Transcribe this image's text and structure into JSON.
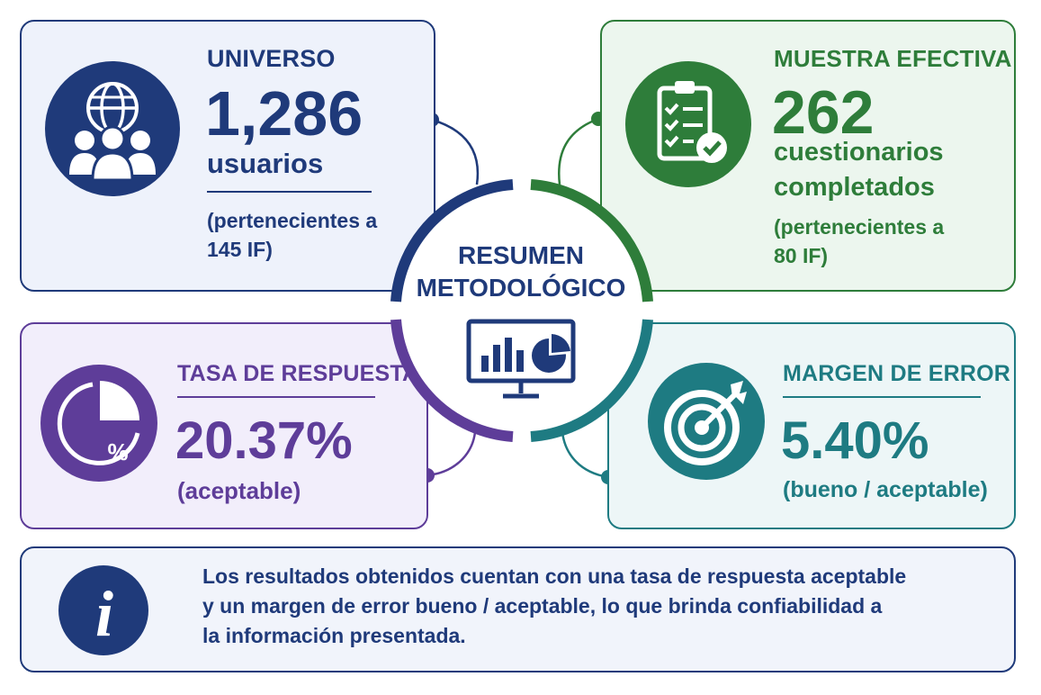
{
  "center": {
    "title_line1": "RESUMEN",
    "title_line2": "METODOLÓGICO",
    "icon": "presentation-chart-icon"
  },
  "universo": {
    "label": "UNIVERSO",
    "value": "1,286",
    "unit": "usuarios",
    "note_line1": "(pertenecientes a",
    "note_line2": "145 IF)",
    "icon": "globe-users-icon",
    "color": "#1f3a7a"
  },
  "muestra": {
    "label": "MUESTRA EFECTIVA",
    "value": "262",
    "unit_line1": "cuestionarios",
    "unit_line2": "completados",
    "note_line1": "(pertenecientes a",
    "note_line2": "80 IF)",
    "icon": "clipboard-check-icon",
    "color": "#2e7d3a"
  },
  "tasa": {
    "label": "TASA DE RESPUESTA",
    "value": "20.37%",
    "qualifier": "(aceptable)",
    "icon": "pie-percent-icon",
    "color": "#5e3d99"
  },
  "margen": {
    "label": "MARGEN DE ERROR",
    "value": "5.40%",
    "qualifier": "(bueno / aceptable)",
    "icon": "target-arrow-icon",
    "color": "#1e7b82"
  },
  "info": {
    "icon": "info-icon",
    "line1": "Los resultados obtenidos cuentan con una tasa de respuesta aceptable",
    "line2": "y un margen de error bueno / aceptable, lo que brinda confiabilidad a",
    "line3": "la información presentada."
  }
}
